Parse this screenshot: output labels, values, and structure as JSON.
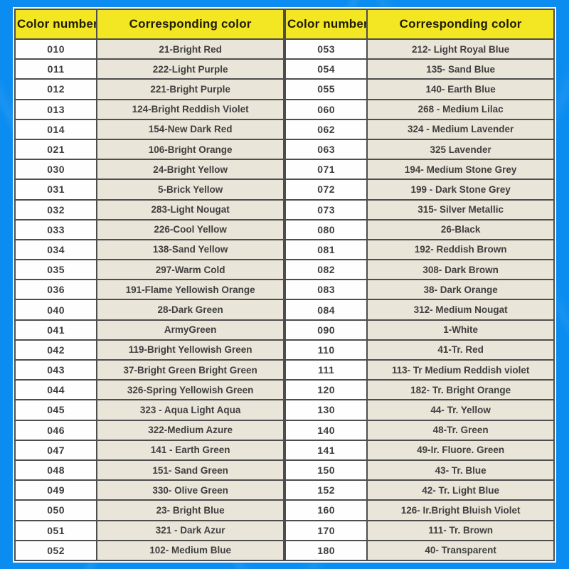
{
  "theme": {
    "page_bg": "#0a8cf0",
    "header_bg": "#f2e722",
    "header_text": "#201c06",
    "border_color": "#4d4d4d",
    "num_bg": "#fefefe",
    "name_bg": "#e9e5d9",
    "cell_text": "#3f3f3f"
  },
  "left_table": {
    "headers": {
      "number": "Color number",
      "color": "Corresponding color"
    },
    "rows": [
      {
        "number": "010",
        "color": "21-Bright Red"
      },
      {
        "number": "011",
        "color": "222-Light Purple"
      },
      {
        "number": "012",
        "color": "221-Bright Purple"
      },
      {
        "number": "013",
        "color": "124-Bright Reddish Violet"
      },
      {
        "number": "014",
        "color": "154-New Dark Red"
      },
      {
        "number": "021",
        "color": "106-Bright Orange"
      },
      {
        "number": "030",
        "color": "24-Bright Yellow"
      },
      {
        "number": "031",
        "color": "5-Brick Yellow"
      },
      {
        "number": "032",
        "color": "283-Light Nougat"
      },
      {
        "number": "033",
        "color": "226-Cool Yellow"
      },
      {
        "number": "034",
        "color": "138-Sand Yellow"
      },
      {
        "number": "035",
        "color": "297-Warm Cold"
      },
      {
        "number": "036",
        "color": "191-Flame Yellowish Orange"
      },
      {
        "number": "040",
        "color": "28-Dark Green"
      },
      {
        "number": "041",
        "color": "ArmyGreen"
      },
      {
        "number": "042",
        "color": "119-Bright Yellowish Green"
      },
      {
        "number": "043",
        "color": "37-Bright Green Bright Green"
      },
      {
        "number": "044",
        "color": "326-Spring Yellowish Green"
      },
      {
        "number": "045",
        "color": "323 - Aqua Light Aqua"
      },
      {
        "number": "046",
        "color": "322-Medium Azure"
      },
      {
        "number": "047",
        "color": "141 - Earth Green"
      },
      {
        "number": "048",
        "color": "151- Sand Green"
      },
      {
        "number": "049",
        "color": "330- Olive Green"
      },
      {
        "number": "050",
        "color": "23- Bright Blue"
      },
      {
        "number": "051",
        "color": "321 - Dark Azur"
      },
      {
        "number": "052",
        "color": "102- Medium Blue"
      }
    ]
  },
  "right_table": {
    "headers": {
      "number": "Color number",
      "color": "Corresponding color"
    },
    "rows": [
      {
        "number": "053",
        "color": "212- Light Royal Blue"
      },
      {
        "number": "054",
        "color": "135- Sand Blue"
      },
      {
        "number": "055",
        "color": "140- Earth Blue"
      },
      {
        "number": "060",
        "color": "268 - Medium Lilac"
      },
      {
        "number": "062",
        "color": "324 - Medium Lavender"
      },
      {
        "number": "063",
        "color": "325 Lavender"
      },
      {
        "number": "071",
        "color": "194- Medium Stone Grey"
      },
      {
        "number": "072",
        "color": "199 - Dark Stone Grey"
      },
      {
        "number": "073",
        "color": "315- Silver Metallic"
      },
      {
        "number": "080",
        "color": "26-Black"
      },
      {
        "number": "081",
        "color": "192- Reddish Brown"
      },
      {
        "number": "082",
        "color": "308- Dark Brown"
      },
      {
        "number": "083",
        "color": "38- Dark Orange"
      },
      {
        "number": "084",
        "color": "312- Medium Nougat"
      },
      {
        "number": "090",
        "color": "1-White"
      },
      {
        "number": "110",
        "color": "41-Tr. Red"
      },
      {
        "number": "111",
        "color": "113- Tr Medium Reddish violet"
      },
      {
        "number": "120",
        "color": "182- Tr. Bright Orange"
      },
      {
        "number": "130",
        "color": "44- Tr. Yellow"
      },
      {
        "number": "140",
        "color": "48-Tr. Green"
      },
      {
        "number": "141",
        "color": "49-Ir. Fluore. Green"
      },
      {
        "number": "150",
        "color": "43- Tr. Blue"
      },
      {
        "number": "152",
        "color": "42- Tr. Light Blue"
      },
      {
        "number": "160",
        "color": "126- Ir.Bright Bluish Violet"
      },
      {
        "number": "170",
        "color": "111- Tr. Brown"
      },
      {
        "number": "180",
        "color": "40- Transparent"
      }
    ]
  }
}
